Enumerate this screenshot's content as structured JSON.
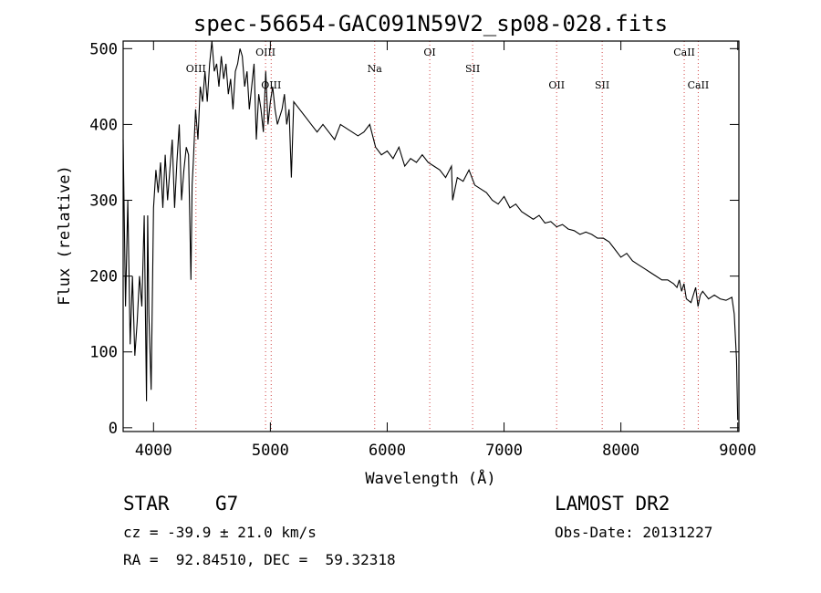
{
  "chart_data": {
    "type": "line",
    "title": "spec-56654-GAC091N59V2_sp08-028.fits",
    "xlabel": "Wavelength (Å)",
    "ylabel": "Flux (relative)",
    "xlim": [
      3740,
      9010
    ],
    "ylim": [
      -5,
      510
    ],
    "x_ticks": [
      4000,
      5000,
      6000,
      7000,
      8000,
      9000
    ],
    "y_ticks": [
      0,
      100,
      200,
      300,
      400,
      500
    ],
    "grid": false,
    "line_color": "#000000",
    "marker_line_color": "#d04040",
    "series": [
      {
        "x": [
          3740,
          3760,
          3780,
          3800,
          3820,
          3840,
          3860,
          3880,
          3900,
          3920,
          3940,
          3950,
          3960,
          3980,
          4000,
          4020,
          4040,
          4060,
          4080,
          4100,
          4120,
          4140,
          4160,
          4180,
          4200,
          4220,
          4240,
          4260,
          4280,
          4300,
          4320,
          4330,
          4340,
          4360,
          4380,
          4400,
          4420,
          4440,
          4460,
          4480,
          4500,
          4520,
          4540,
          4560,
          4580,
          4600,
          4620,
          4640,
          4660,
          4680,
          4700,
          4720,
          4740,
          4760,
          4780,
          4800,
          4820,
          4840,
          4860,
          4880,
          4900,
          4920,
          4940,
          4960,
          4980,
          5000,
          5020,
          5040,
          5060,
          5080,
          5100,
          5120,
          5140,
          5160,
          5180,
          5200,
          5250,
          5300,
          5350,
          5400,
          5450,
          5500,
          5550,
          5600,
          5650,
          5700,
          5750,
          5800,
          5850,
          5900,
          5950,
          6000,
          6050,
          6100,
          6150,
          6200,
          6250,
          6300,
          6350,
          6400,
          6450,
          6500,
          6550,
          6560,
          6600,
          6650,
          6700,
          6750,
          6800,
          6850,
          6900,
          6950,
          7000,
          7050,
          7100,
          7150,
          7200,
          7250,
          7300,
          7350,
          7400,
          7450,
          7500,
          7550,
          7600,
          7650,
          7700,
          7750,
          7800,
          7850,
          7900,
          7950,
          8000,
          8050,
          8100,
          8150,
          8200,
          8250,
          8300,
          8350,
          8400,
          8450,
          8480,
          8500,
          8520,
          8540,
          8560,
          8600,
          8640,
          8660,
          8680,
          8700,
          8750,
          8800,
          8850,
          8900,
          8950,
          8970,
          8990,
          9000
        ],
        "y": [
          380,
          160,
          300,
          110,
          200,
          95,
          140,
          200,
          160,
          280,
          35,
          280,
          150,
          50,
          290,
          340,
          310,
          350,
          290,
          360,
          300,
          340,
          380,
          290,
          350,
          400,
          300,
          340,
          370,
          360,
          195,
          320,
          350,
          420,
          380,
          450,
          430,
          470,
          430,
          480,
          510,
          470,
          480,
          450,
          490,
          460,
          480,
          440,
          460,
          420,
          470,
          480,
          500,
          490,
          450,
          470,
          420,
          450,
          480,
          380,
          440,
          420,
          390,
          470,
          400,
          430,
          450,
          420,
          400,
          410,
          420,
          440,
          400,
          420,
          330,
          430,
          420,
          410,
          400,
          390,
          400,
          390,
          380,
          400,
          395,
          390,
          385,
          390,
          400,
          370,
          360,
          365,
          355,
          370,
          345,
          355,
          350,
          360,
          350,
          345,
          340,
          330,
          345,
          300,
          330,
          325,
          340,
          320,
          315,
          310,
          300,
          295,
          305,
          290,
          295,
          285,
          280,
          275,
          280,
          270,
          272,
          265,
          268,
          262,
          260,
          255,
          258,
          255,
          250,
          250,
          245,
          235,
          225,
          230,
          220,
          215,
          210,
          205,
          200,
          195,
          195,
          190,
          185,
          195,
          180,
          190,
          170,
          165,
          185,
          160,
          175,
          180,
          170,
          175,
          170,
          168,
          172,
          150,
          90,
          10
        ]
      }
    ],
    "annotations": [
      {
        "label": "OIII",
        "x": 4363,
        "row": 2
      },
      {
        "label": "OIII",
        "x": 4959,
        "row": 1
      },
      {
        "label": "OIII",
        "x": 5007,
        "row": 3
      },
      {
        "label": "Na",
        "x": 5893,
        "row": 2
      },
      {
        "label": "OI",
        "x": 6364,
        "row": 1
      },
      {
        "label": "SII",
        "x": 6731,
        "row": 2
      },
      {
        "label": "OII",
        "x": 7450,
        "row": 3
      },
      {
        "label": "SII",
        "x": 7840,
        "row": 3
      },
      {
        "label": "CaII",
        "x": 8542,
        "row": 1
      },
      {
        "label": "CaII",
        "x": 8662,
        "row": 3
      }
    ]
  },
  "info": {
    "object_class": "STAR",
    "subclass": "G7",
    "survey": "LAMOST DR2",
    "velocity": "cz = -39.9 ± 21.0 km/s",
    "obs_date": "Obs-Date: 20131227",
    "coords": "RA =  92.84510, DEC =  59.32318"
  }
}
